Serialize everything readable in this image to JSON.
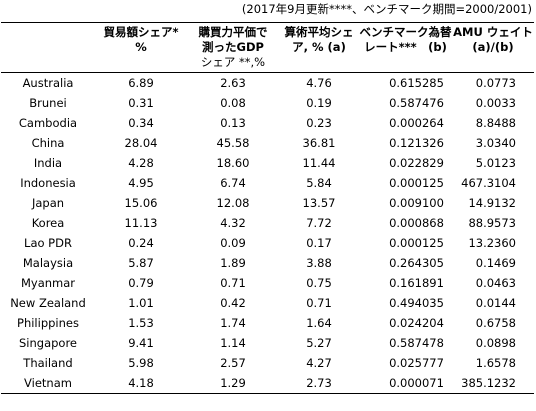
{
  "note": "(2017年9月更新****、ベンチマーク期間=2000/2001)",
  "headers": {
    "country": "",
    "trade_share": [
      "貿易額シェア*",
      "%"
    ],
    "gdp_share": [
      "購買力平価で",
      "測ったGDP",
      "シェア **,%"
    ],
    "avg_share": [
      "算術平均シェ",
      "ア, % (a)"
    ],
    "benchmark_rate": [
      "ベンチマーク為替",
      "レート***　(b)"
    ],
    "amu_weight": [
      "AMU ウェイト",
      "(a)/(b)"
    ]
  },
  "rows": [
    {
      "country": "Australia",
      "trade": "6.89",
      "gdp": "2.63",
      "avg": "4.76",
      "rate": "0.615285",
      "weight": "0.0773"
    },
    {
      "country": "Brunei",
      "trade": "0.31",
      "gdp": "0.08",
      "avg": "0.19",
      "rate": "0.587476",
      "weight": "0.0033"
    },
    {
      "country": "Cambodia",
      "trade": "0.34",
      "gdp": "0.13",
      "avg": "0.23",
      "rate": "0.000264",
      "weight": "8.8488"
    },
    {
      "country": "China",
      "trade": "28.04",
      "gdp": "45.58",
      "avg": "36.81",
      "rate": "0.121326",
      "weight": "3.0340"
    },
    {
      "country": "India",
      "trade": "4.28",
      "gdp": "18.60",
      "avg": "11.44",
      "rate": "0.022829",
      "weight": "5.0123"
    },
    {
      "country": "Indonesia",
      "trade": "4.95",
      "gdp": "6.74",
      "avg": "5.84",
      "rate": "0.000125",
      "weight": "467.3104"
    },
    {
      "country": "Japan",
      "trade": "15.06",
      "gdp": "12.08",
      "avg": "13.57",
      "rate": "0.009100",
      "weight": "14.9132"
    },
    {
      "country": "Korea",
      "trade": "11.13",
      "gdp": "4.32",
      "avg": "7.72",
      "rate": "0.000868",
      "weight": "88.9573"
    },
    {
      "country": "Lao PDR",
      "trade": "0.24",
      "gdp": "0.09",
      "avg": "0.17",
      "rate": "0.000125",
      "weight": "13.2360"
    },
    {
      "country": "Malaysia",
      "trade": "5.87",
      "gdp": "1.89",
      "avg": "3.88",
      "rate": "0.264305",
      "weight": "0.1469"
    },
    {
      "country": "Myanmar",
      "trade": "0.79",
      "gdp": "0.71",
      "avg": "0.75",
      "rate": "0.161891",
      "weight": "0.0463"
    },
    {
      "country": "New Zealand",
      "trade": "1.01",
      "gdp": "0.42",
      "avg": "0.71",
      "rate": "0.494035",
      "weight": "0.0144"
    },
    {
      "country": "Philippines",
      "trade": "1.53",
      "gdp": "1.74",
      "avg": "1.64",
      "rate": "0.024204",
      "weight": "0.6758"
    },
    {
      "country": "Singapore",
      "trade": "9.41",
      "gdp": "1.14",
      "avg": "5.27",
      "rate": "0.587478",
      "weight": "0.0898"
    },
    {
      "country": "Thailand",
      "trade": "5.98",
      "gdp": "2.57",
      "avg": "4.27",
      "rate": "0.025777",
      "weight": "1.6578"
    },
    {
      "country": "Vietnam",
      "trade": "4.18",
      "gdp": "1.29",
      "avg": "2.73",
      "rate": "0.000071",
      "weight": "385.1232"
    }
  ]
}
